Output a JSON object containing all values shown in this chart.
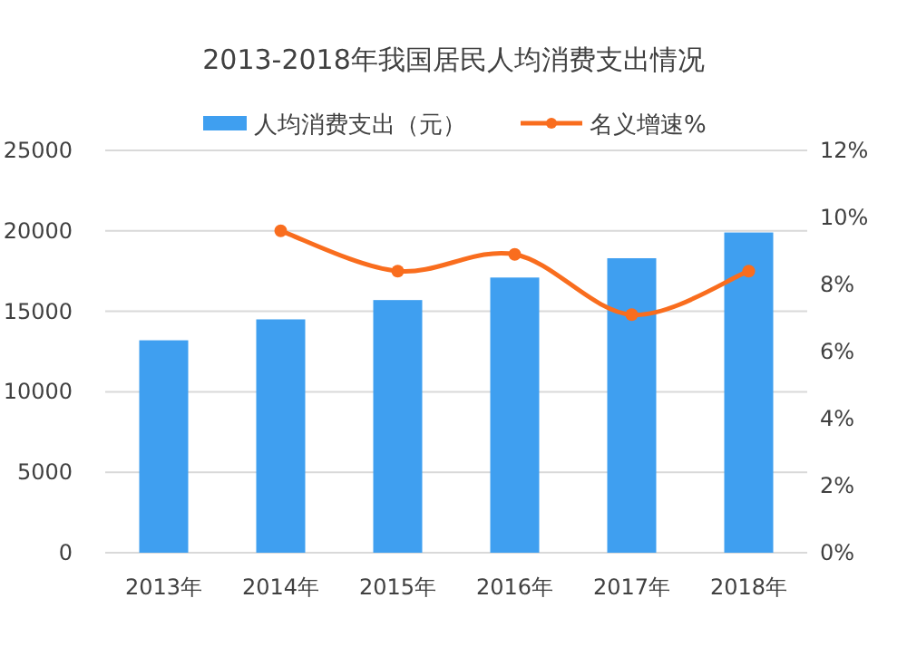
{
  "chart_data": {
    "type": "bar",
    "title": "2013-2018年我国居民人均消费支出情况",
    "categories": [
      "2013年",
      "2014年",
      "2015年",
      "2016年",
      "2017年",
      "2018年"
    ],
    "series": [
      {
        "name": "人均消费支出（元）",
        "color": "#3f9ff0",
        "values": [
          13200,
          14500,
          15700,
          17100,
          18300,
          19900
        ]
      },
      {
        "name": "名义增速%",
        "type": "line",
        "axis": "y2",
        "color": "#f96d1e",
        "marker": "circle",
        "values": [
          null,
          9.6,
          8.4,
          8.9,
          7.1,
          8.4
        ]
      }
    ],
    "ylim": [
      0,
      25000
    ],
    "yticks": [
      0,
      5000,
      10000,
      15000,
      20000,
      25000
    ],
    "y2lim": [
      0,
      12
    ],
    "y2ticks": [
      {
        "value": 0,
        "label": "0%"
      },
      {
        "value": 2,
        "label": "2%"
      },
      {
        "value": 4,
        "label": "4%"
      },
      {
        "value": 6,
        "label": "6%"
      },
      {
        "value": 8,
        "label": "8%"
      },
      {
        "value": 10,
        "label": "10%"
      },
      {
        "value": 12,
        "label": "12%"
      }
    ],
    "grid": "y",
    "legend": "top"
  }
}
